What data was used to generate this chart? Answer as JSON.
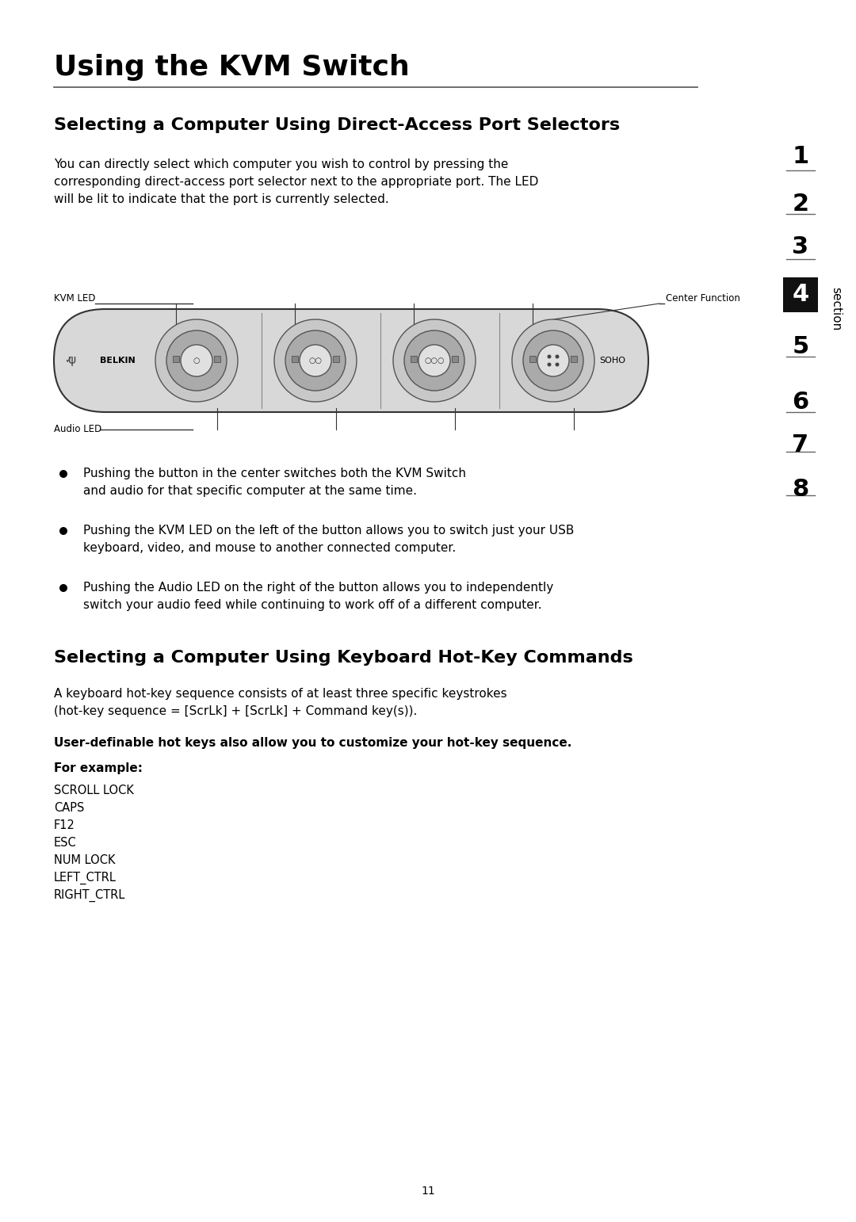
{
  "title": "Using the KVM Switch",
  "section_heading1": "Selecting a Computer Using Direct-Access Port Selectors",
  "section_text1": "You can directly select which computer you wish to control by pressing the\ncorresponding direct-access port selector next to the appropriate port. The LED\nwill be lit to indicate that the port is currently selected.",
  "kvm_led_label": "KVM LED",
  "center_function_label": "Center Function",
  "audio_led_label": "Audio LED",
  "belkin_text": "BELKIN",
  "soho_text": "SOHO",
  "bullet_points": [
    "Pushing the button in the center switches both the KVM Switch\nand audio for that specific computer at the same time.",
    "Pushing the KVM LED on the left of the button allows you to switch just your USB\nkeyboard, video, and mouse to another connected computer.",
    "Pushing the Audio LED on the right of the button allows you to independently\nswitch your audio feed while continuing to work off of a different computer."
  ],
  "section_heading2": "Selecting a Computer Using Keyboard Hot-Key Commands",
  "section_text2": "A keyboard hot-key sequence consists of at least three specific keystrokes\n(hot-key sequence = [ScrLk] + [ScrLk] + Command key(s)).",
  "bold_text": "User-definable hot keys also allow you to customize your hot-key sequence.",
  "for_example_label": "For example:",
  "key_list": [
    "SCROLL LOCK",
    "CAPS",
    "F12",
    "ESC",
    "NUM LOCK",
    "LEFT_CTRL",
    "RIGHT_CTRL"
  ],
  "section_numbers": [
    "1",
    "2",
    "3",
    "4",
    "5",
    "6",
    "7",
    "8"
  ],
  "active_section": "4",
  "page_number": "11",
  "bg_color": "#ffffff",
  "text_color": "#000000",
  "section_bar_color": "#222222",
  "device_fill_color": "#d8d8d8",
  "device_stroke_color": "#333333"
}
